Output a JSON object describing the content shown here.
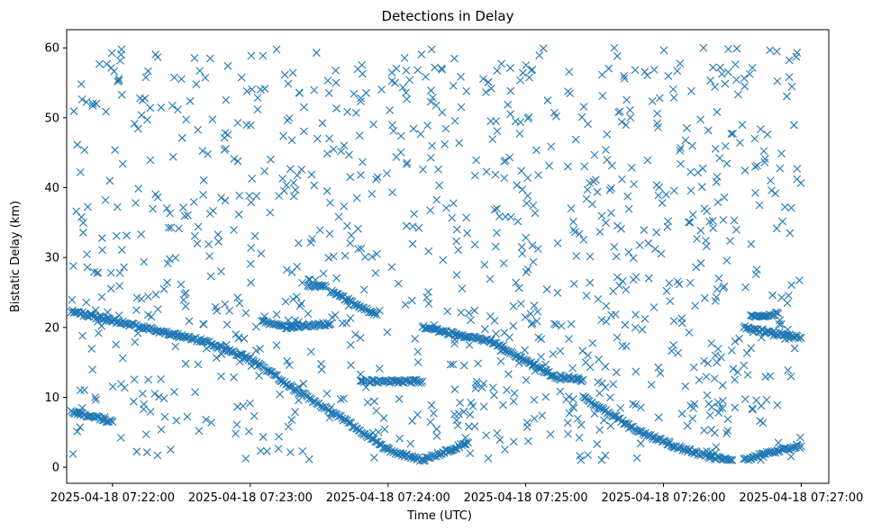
{
  "chart_data": {
    "type": "scatter",
    "title": "Detections in Delay",
    "xlabel": "Time (UTC)",
    "ylabel": "Bistatic Delay (km)",
    "x_tick_labels": [
      "2025-04-18 07:22:00",
      "2025-04-18 07:23:00",
      "2025-04-18 07:24:00",
      "2025-04-18 07:25:00",
      "2025-04-18 07:26:00",
      "2025-04-18 07:27:00"
    ],
    "y_tick_labels": [
      "0",
      "10",
      "20",
      "30",
      "40",
      "50",
      "60"
    ],
    "xlim": [
      "2025-04-18 07:21:40",
      "2025-04-18 07:27:12"
    ],
    "ylim": [
      -2.3,
      62.6
    ],
    "grid": false,
    "legend": "none",
    "marker": "x",
    "color": "#1f77b4",
    "time_range": [
      "2025-04-18 07:21:42",
      "2025-04-18 07:27:00"
    ],
    "tracks": [
      {
        "points": [
          [
            "2025-04-18 07:21:42",
            22.3
          ],
          [
            "2025-04-18 07:22:00",
            21.0
          ],
          [
            "2025-04-18 07:22:40",
            18.0
          ],
          [
            "2025-04-18 07:23:00",
            15.5
          ],
          [
            "2025-04-18 07:23:20",
            11.0
          ],
          [
            "2025-04-18 07:23:40",
            7.0
          ],
          [
            "2025-04-18 07:24:00",
            2.5
          ],
          [
            "2025-04-18 07:24:15",
            1.0
          ],
          [
            "2025-04-18 07:24:35",
            3.5
          ]
        ]
      },
      {
        "points": [
          [
            "2025-04-18 07:21:42",
            8.0
          ],
          [
            "2025-04-18 07:22:00",
            6.5
          ]
        ]
      },
      {
        "points": [
          [
            "2025-04-18 07:23:05",
            21.0
          ],
          [
            "2025-04-18 07:23:15",
            20.0
          ],
          [
            "2025-04-18 07:23:35",
            20.5
          ]
        ]
      },
      {
        "points": [
          [
            "2025-04-18 07:23:25",
            26.0
          ],
          [
            "2025-04-18 07:23:33",
            25.8
          ]
        ]
      },
      {
        "points": [
          [
            "2025-04-18 07:23:35",
            25.2
          ],
          [
            "2025-04-18 07:23:55",
            21.8
          ]
        ]
      },
      {
        "points": [
          [
            "2025-04-18 07:24:15",
            20.0
          ],
          [
            "2025-04-18 07:24:45",
            18.0
          ],
          [
            "2025-04-18 07:25:15",
            12.5
          ]
        ]
      },
      {
        "points": [
          [
            "2025-04-18 07:23:48",
            12.3
          ],
          [
            "2025-04-18 07:24:15",
            12.3
          ]
        ]
      },
      {
        "points": [
          [
            "2025-04-18 07:25:15",
            13.0
          ],
          [
            "2025-04-18 07:25:25",
            12.5
          ]
        ]
      },
      {
        "points": [
          [
            "2025-04-18 07:25:25",
            10.0
          ],
          [
            "2025-04-18 07:25:50",
            5.0
          ],
          [
            "2025-04-18 07:26:05",
            3.0
          ],
          [
            "2025-04-18 07:26:20",
            1.5
          ],
          [
            "2025-04-18 07:26:30",
            1.0
          ]
        ]
      },
      {
        "points": [
          [
            "2025-04-18 07:26:35",
            1.0
          ],
          [
            "2025-04-18 07:26:45",
            2.0
          ],
          [
            "2025-04-18 07:27:00",
            3.0
          ]
        ]
      },
      {
        "points": [
          [
            "2025-04-18 07:26:38",
            21.5
          ],
          [
            "2025-04-18 07:26:50",
            22.0
          ]
        ]
      },
      {
        "points": [
          [
            "2025-04-18 07:26:35",
            20.0
          ],
          [
            "2025-04-18 07:27:00",
            18.5
          ]
        ]
      }
    ],
    "clutter_y_range": [
      1,
      60
    ]
  }
}
